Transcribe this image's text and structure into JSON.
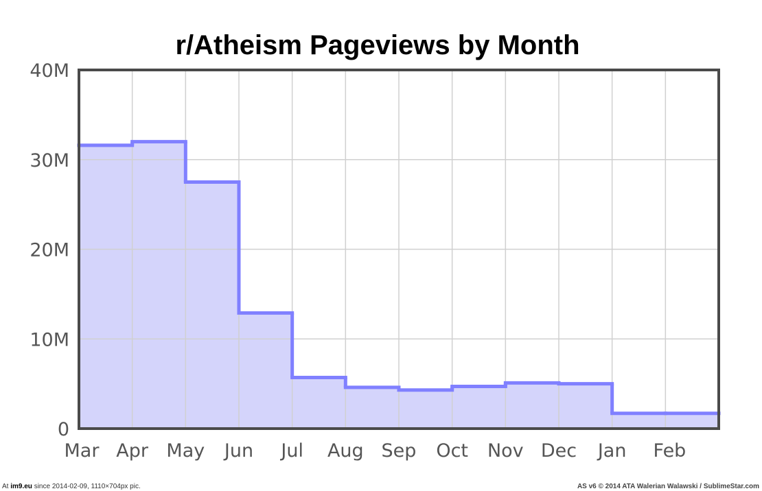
{
  "chart_data": {
    "type": "area",
    "step": true,
    "title": "r/Atheism Pageviews by Month",
    "xlabel": "",
    "ylabel": "",
    "categories": [
      "Mar",
      "Apr",
      "May",
      "Jun",
      "Jul",
      "Aug",
      "Sep",
      "Oct",
      "Nov",
      "Dec",
      "Jan",
      "Feb"
    ],
    "values": [
      31.6,
      32.0,
      27.5,
      12.9,
      5.7,
      4.6,
      4.3,
      4.7,
      5.1,
      5.0,
      1.7,
      1.7
    ],
    "ylim": [
      0,
      40
    ],
    "yticks": [
      0,
      10,
      20,
      30,
      40
    ],
    "ytick_labels": [
      "0",
      "10M",
      "20M",
      "30M",
      "40M"
    ],
    "grid": true,
    "colors": {
      "line": "#8080ff",
      "fill": "#d4d4fb",
      "frame": "#4a4a4a",
      "grid": "#d0d0d0"
    }
  },
  "footer": {
    "left_prefix": "At",
    "left_site": "im9.eu",
    "left_rest": "since 2014-02-09, 1110×704px pic.",
    "right": "AS v6 © 2014 ATA Walerian Walawski / SublimeStar.com"
  }
}
